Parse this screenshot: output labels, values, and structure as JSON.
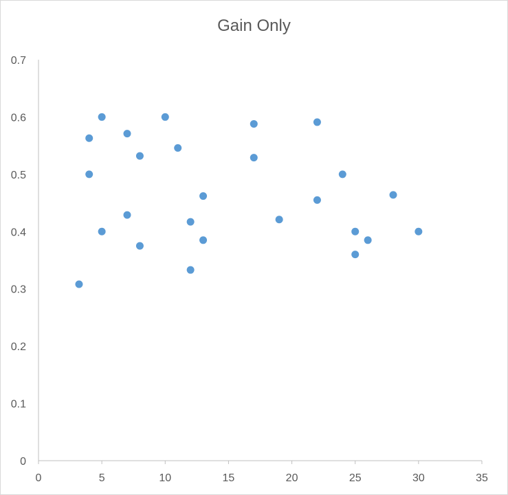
{
  "chart_data": {
    "type": "scatter",
    "title": "Gain Only",
    "xlabel": "",
    "ylabel": "",
    "xlim": [
      0,
      35
    ],
    "ylim": [
      0,
      0.7
    ],
    "x_ticks": [
      "0",
      "5",
      "10",
      "15",
      "20",
      "25",
      "30",
      "35"
    ],
    "y_ticks": [
      "0",
      "0.1",
      "0.2",
      "0.3",
      "0.4",
      "0.5",
      "0.6",
      "0.7"
    ],
    "grid": false,
    "legend": "none",
    "marker_color": "#5b9bd5",
    "points": [
      {
        "x": 3.2,
        "y": 0.308
      },
      {
        "x": 4,
        "y": 0.563
      },
      {
        "x": 4,
        "y": 0.5
      },
      {
        "x": 5,
        "y": 0.6
      },
      {
        "x": 5,
        "y": 0.4
      },
      {
        "x": 7,
        "y": 0.571
      },
      {
        "x": 7,
        "y": 0.429
      },
      {
        "x": 8,
        "y": 0.532
      },
      {
        "x": 8,
        "y": 0.375
      },
      {
        "x": 10,
        "y": 0.6
      },
      {
        "x": 11,
        "y": 0.546
      },
      {
        "x": 12,
        "y": 0.417
      },
      {
        "x": 12,
        "y": 0.333
      },
      {
        "x": 13,
        "y": 0.462
      },
      {
        "x": 13,
        "y": 0.385
      },
      {
        "x": 17,
        "y": 0.588
      },
      {
        "x": 17,
        "y": 0.529
      },
      {
        "x": 19,
        "y": 0.421
      },
      {
        "x": 22,
        "y": 0.591
      },
      {
        "x": 22,
        "y": 0.455
      },
      {
        "x": 24,
        "y": 0.5
      },
      {
        "x": 25,
        "y": 0.4
      },
      {
        "x": 25,
        "y": 0.36
      },
      {
        "x": 26,
        "y": 0.385
      },
      {
        "x": 28,
        "y": 0.464
      },
      {
        "x": 30,
        "y": 0.4
      }
    ]
  }
}
